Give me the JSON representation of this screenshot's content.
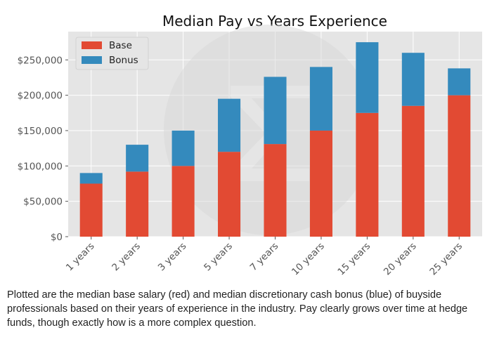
{
  "chart_data": {
    "type": "bar",
    "stacked": true,
    "title": "Median Pay vs Years Experience",
    "xlabel": "",
    "ylabel": "",
    "categories": [
      "1 years",
      "2 years",
      "3 years",
      "5 years",
      "7 years",
      "10 years",
      "15 years",
      "20 years",
      "25 years"
    ],
    "series": [
      {
        "name": "Base",
        "color": "#e24a33",
        "values": [
          75000,
          92000,
          100000,
          120000,
          131000,
          150000,
          175000,
          185000,
          200000
        ]
      },
      {
        "name": "Bonus",
        "color": "#348abd",
        "values": [
          15000,
          38000,
          50000,
          75000,
          95000,
          90000,
          100000,
          75000,
          38000
        ]
      }
    ],
    "ylim": [
      0,
      290000
    ],
    "yticks": [
      0,
      50000,
      100000,
      150000,
      200000,
      250000
    ],
    "ytick_labels": [
      "$0",
      "$50,000",
      "$100,000",
      "$150,000",
      "$200,000",
      "$250,000"
    ],
    "grid": true,
    "legend_position": "top-left",
    "background_color": "#e5e5e5",
    "style": "ggplot"
  },
  "caption": "Plotted are the median base salary (red) and median discretionary cash bonus (blue) of buyside professionals based on their years of experience in the industry. Pay clearly grows over time at hedge funds, though exactly how is a more complex question.",
  "watermark": "sigma-logo"
}
